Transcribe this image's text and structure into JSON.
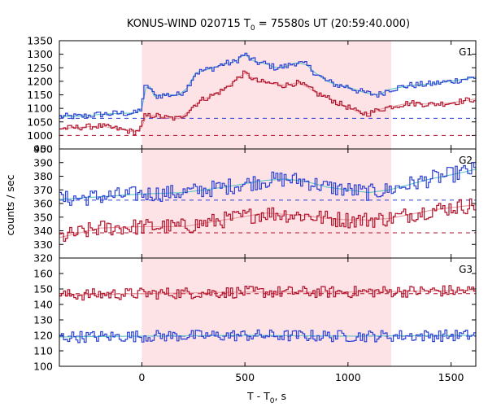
{
  "chart_data": {
    "type": "line",
    "title": {
      "main": "KONUS-WIND 020715 T",
      "sub": "0",
      "rest": " = 75580s UT (20:59:40.000)"
    },
    "xlabel": {
      "main": "T - T",
      "sub": "0",
      "rest": ", s"
    },
    "ylabel": "counts / sec",
    "xlim": [
      -400,
      1620
    ],
    "x_ticks": [
      "0",
      "500",
      "1000",
      "1500"
    ],
    "x_tick_values": [
      0,
      500,
      1000,
      1500
    ],
    "highlight_interval": [
      0,
      1210
    ],
    "highlight_color": "#fde3e5",
    "colors": {
      "blue": "#2a3fd6",
      "blue_model": "#5fc4c4",
      "red": "#b2112a",
      "red_model": "#e89aa0"
    },
    "panels": [
      {
        "label": "G1",
        "ylim": [
          950,
          1350
        ],
        "y_ticks": [
          "950",
          "1000",
          "1050",
          "1100",
          "1150",
          "1200",
          "1250",
          "1300",
          "1350"
        ],
        "y_tick_values": [
          950,
          1000,
          1050,
          1100,
          1150,
          1200,
          1250,
          1300,
          1350
        ],
        "series": [
          {
            "color": "blue",
            "model_color": "blue_model",
            "background": 1063,
            "points": [
              [
                -400,
                1070
              ],
              [
                -300,
                1070
              ],
              [
                -200,
                1078
              ],
              [
                -100,
                1082
              ],
              [
                -30,
                1082
              ],
              [
                0,
                1100
              ],
              [
                10,
                1175
              ],
              [
                40,
                1180
              ],
              [
                60,
                1145
              ],
              [
                120,
                1150
              ],
              [
                180,
                1150
              ],
              [
                220,
                1175
              ],
              [
                260,
                1230
              ],
              [
                300,
                1240
              ],
              [
                350,
                1250
              ],
              [
                400,
                1265
              ],
              [
                450,
                1270
              ],
              [
                480,
                1290
              ],
              [
                500,
                1300
              ],
              [
                530,
                1280
              ],
              [
                560,
                1270
              ],
              [
                600,
                1265
              ],
              [
                650,
                1250
              ],
              [
                700,
                1255
              ],
              [
                750,
                1270
              ],
              [
                800,
                1260
              ],
              [
                850,
                1225
              ],
              [
                900,
                1200
              ],
              [
                950,
                1185
              ],
              [
                1000,
                1180
              ],
              [
                1050,
                1165
              ],
              [
                1100,
                1155
              ],
              [
                1150,
                1150
              ],
              [
                1200,
                1170
              ],
              [
                1300,
                1185
              ],
              [
                1400,
                1190
              ],
              [
                1500,
                1200
              ],
              [
                1620,
                1215
              ]
            ],
            "jitter": 10
          },
          {
            "color": "red",
            "model_color": "red_model",
            "background": 1000,
            "points": [
              [
                -400,
                1025
              ],
              [
                -300,
                1030
              ],
              [
                -200,
                1035
              ],
              [
                -100,
                1022
              ],
              [
                -30,
                1012
              ],
              [
                0,
                1030
              ],
              [
                10,
                1070
              ],
              [
                60,
                1075
              ],
              [
                120,
                1065
              ],
              [
                180,
                1062
              ],
              [
                220,
                1085
              ],
              [
                260,
                1115
              ],
              [
                300,
                1135
              ],
              [
                350,
                1150
              ],
              [
                400,
                1170
              ],
              [
                450,
                1200
              ],
              [
                480,
                1220
              ],
              [
                500,
                1230
              ],
              [
                530,
                1215
              ],
              [
                560,
                1200
              ],
              [
                600,
                1195
              ],
              [
                650,
                1190
              ],
              [
                700,
                1185
              ],
              [
                750,
                1195
              ],
              [
                800,
                1180
              ],
              [
                850,
                1155
              ],
              [
                900,
                1140
              ],
              [
                950,
                1120
              ],
              [
                1000,
                1105
              ],
              [
                1050,
                1085
              ],
              [
                1100,
                1080
              ],
              [
                1150,
                1095
              ],
              [
                1200,
                1105
              ],
              [
                1300,
                1120
              ],
              [
                1400,
                1115
              ],
              [
                1500,
                1120
              ],
              [
                1620,
                1135
              ]
            ],
            "jitter": 9
          }
        ]
      },
      {
        "label": "G2",
        "ylim": [
          320,
          400
        ],
        "y_ticks": [
          "320",
          "330",
          "340",
          "350",
          "360",
          "370",
          "380",
          "390",
          "400"
        ],
        "y_tick_values": [
          320,
          330,
          340,
          350,
          360,
          370,
          380,
          390,
          400
        ],
        "series": [
          {
            "color": "blue",
            "model_color": "blue_model",
            "background": 362.5,
            "points": [
              [
                -400,
                363
              ],
              [
                -200,
                365
              ],
              [
                0,
                367
              ],
              [
                200,
                368
              ],
              [
                400,
                372
              ],
              [
                600,
                377
              ],
              [
                700,
                378
              ],
              [
                800,
                376
              ],
              [
                900,
                372
              ],
              [
                1000,
                370
              ],
              [
                1100,
                368
              ],
              [
                1200,
                370
              ],
              [
                1300,
                374
              ],
              [
                1400,
                378
              ],
              [
                1500,
                381
              ],
              [
                1620,
                385
              ]
            ],
            "jitter": 5
          },
          {
            "color": "red",
            "model_color": "red_model",
            "background": 338.5,
            "points": [
              [
                -400,
                335
              ],
              [
                -200,
                342
              ],
              [
                0,
                343
              ],
              [
                200,
                343
              ],
              [
                400,
                348
              ],
              [
                600,
                353
              ],
              [
                700,
                352
              ],
              [
                800,
                351
              ],
              [
                900,
                349
              ],
              [
                1000,
                348
              ],
              [
                1100,
                348
              ],
              [
                1200,
                349
              ],
              [
                1300,
                352
              ],
              [
                1400,
                355
              ],
              [
                1500,
                357
              ],
              [
                1620,
                359
              ]
            ],
            "jitter": 5
          }
        ]
      },
      {
        "label": "G3",
        "ylim": [
          100,
          170
        ],
        "y_ticks": [
          "100",
          "110",
          "120",
          "130",
          "140",
          "150",
          "160"
        ],
        "y_tick_values": [
          100,
          110,
          120,
          130,
          140,
          150,
          160
        ],
        "series": [
          {
            "color": "red",
            "model_color": "red_model",
            "background": 147,
            "points": [
              [
                -400,
                146
              ],
              [
                0,
                147
              ],
              [
                500,
                148
              ],
              [
                1000,
                148
              ],
              [
                1620,
                149
              ]
            ],
            "jitter": 3.2
          },
          {
            "color": "blue",
            "model_color": "blue_model",
            "background": 119.5,
            "points": [
              [
                -400,
                119
              ],
              [
                0,
                119.5
              ],
              [
                500,
                120
              ],
              [
                1000,
                119.5
              ],
              [
                1620,
                120
              ]
            ],
            "jitter": 3.2
          }
        ]
      }
    ]
  }
}
